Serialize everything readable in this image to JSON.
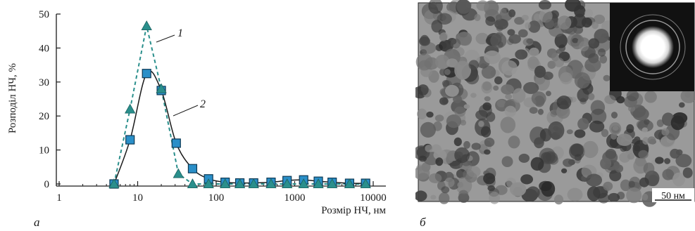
{
  "panel_a_label": "а",
  "panel_b_label": "б",
  "scale_bar_label": "50 нм",
  "chart_data": {
    "type": "line",
    "xscale": "log",
    "xlabel": "Розмір НЧ, нм",
    "ylabel": "Розподіл НЧ, %",
    "xlim": [
      1,
      10000
    ],
    "ylim": [
      0,
      50
    ],
    "x_ticks": [
      1,
      10,
      100,
      1000,
      10000
    ],
    "x_tick_labels": [
      "1",
      "10",
      "100",
      "1000",
      "10000"
    ],
    "y_ticks": [
      0,
      10,
      20,
      30,
      40,
      50
    ],
    "y_tick_labels": [
      "0",
      "10",
      "20",
      "30",
      "40",
      "50"
    ],
    "grid": false,
    "series": [
      {
        "name": "1",
        "style": "dashed",
        "marker": "triangle",
        "color": "#2a8f8c",
        "x": [
          5,
          8,
          13,
          20,
          33,
          50,
          80,
          130,
          200,
          300,
          500,
          800,
          1300,
          2000,
          3000,
          5000,
          8000
        ],
        "y": [
          0,
          22,
          46.5,
          28,
          3,
          0,
          0,
          0,
          0,
          0,
          0,
          0,
          0,
          0,
          0,
          0,
          0
        ]
      },
      {
        "name": "2",
        "style": "solid",
        "marker": "square",
        "color": "#2a8fc8",
        "x": [
          5,
          8,
          13,
          20,
          31,
          50,
          80,
          130,
          200,
          300,
          500,
          800,
          1300,
          2000,
          3000,
          5000,
          8000
        ],
        "y": [
          0,
          13,
          32.5,
          27.5,
          12,
          4.5,
          1.5,
          0.5,
          0.3,
          0.3,
          0.5,
          1,
          1.2,
          0.8,
          0.5,
          0.2,
          0.2
        ]
      }
    ]
  },
  "image_panel": {
    "description": "TEM micrograph with electron diffraction inset",
    "background": "#9a9a9a",
    "inset_background": "#111111"
  }
}
